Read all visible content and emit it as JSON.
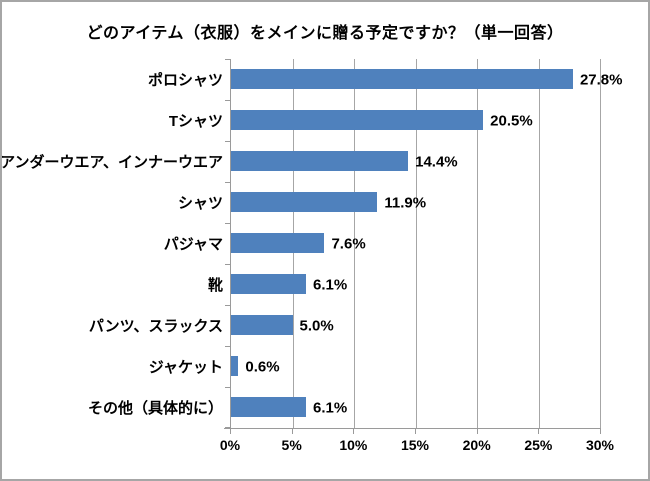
{
  "chart_data": {
    "type": "bar",
    "orientation": "horizontal",
    "title": "どのアイテム（衣服）をメインに贈る予定ですか？（単一回答）",
    "categories": [
      "ポロシャツ",
      "Tシャツ",
      "アンダーウエア、インナーウエア",
      "シャツ",
      "パジャマ",
      "靴",
      "パンツ、スラックス",
      "ジャケット",
      "その他（具体的に）"
    ],
    "values": [
      27.8,
      20.5,
      14.4,
      11.9,
      7.6,
      6.1,
      5.0,
      0.6,
      6.1
    ],
    "value_labels": [
      "27.8%",
      "20.5%",
      "14.4%",
      "11.9%",
      "7.6%",
      "6.1%",
      "5.0%",
      "0.6%",
      "6.1%"
    ],
    "xlabel": "",
    "ylabel": "",
    "xlim": [
      0,
      30
    ],
    "x_tick_step": 5,
    "x_tick_labels": [
      "0%",
      "5%",
      "10%",
      "15%",
      "20%",
      "25%",
      "30%"
    ],
    "grid": true,
    "legend": "none",
    "bar_color": "#4f81bd",
    "gridline_color": "#a6a6a6",
    "axis_color": "#9a9a9a",
    "frame_border_color": "#a6a6a6",
    "background_color": "#ffffff"
  }
}
